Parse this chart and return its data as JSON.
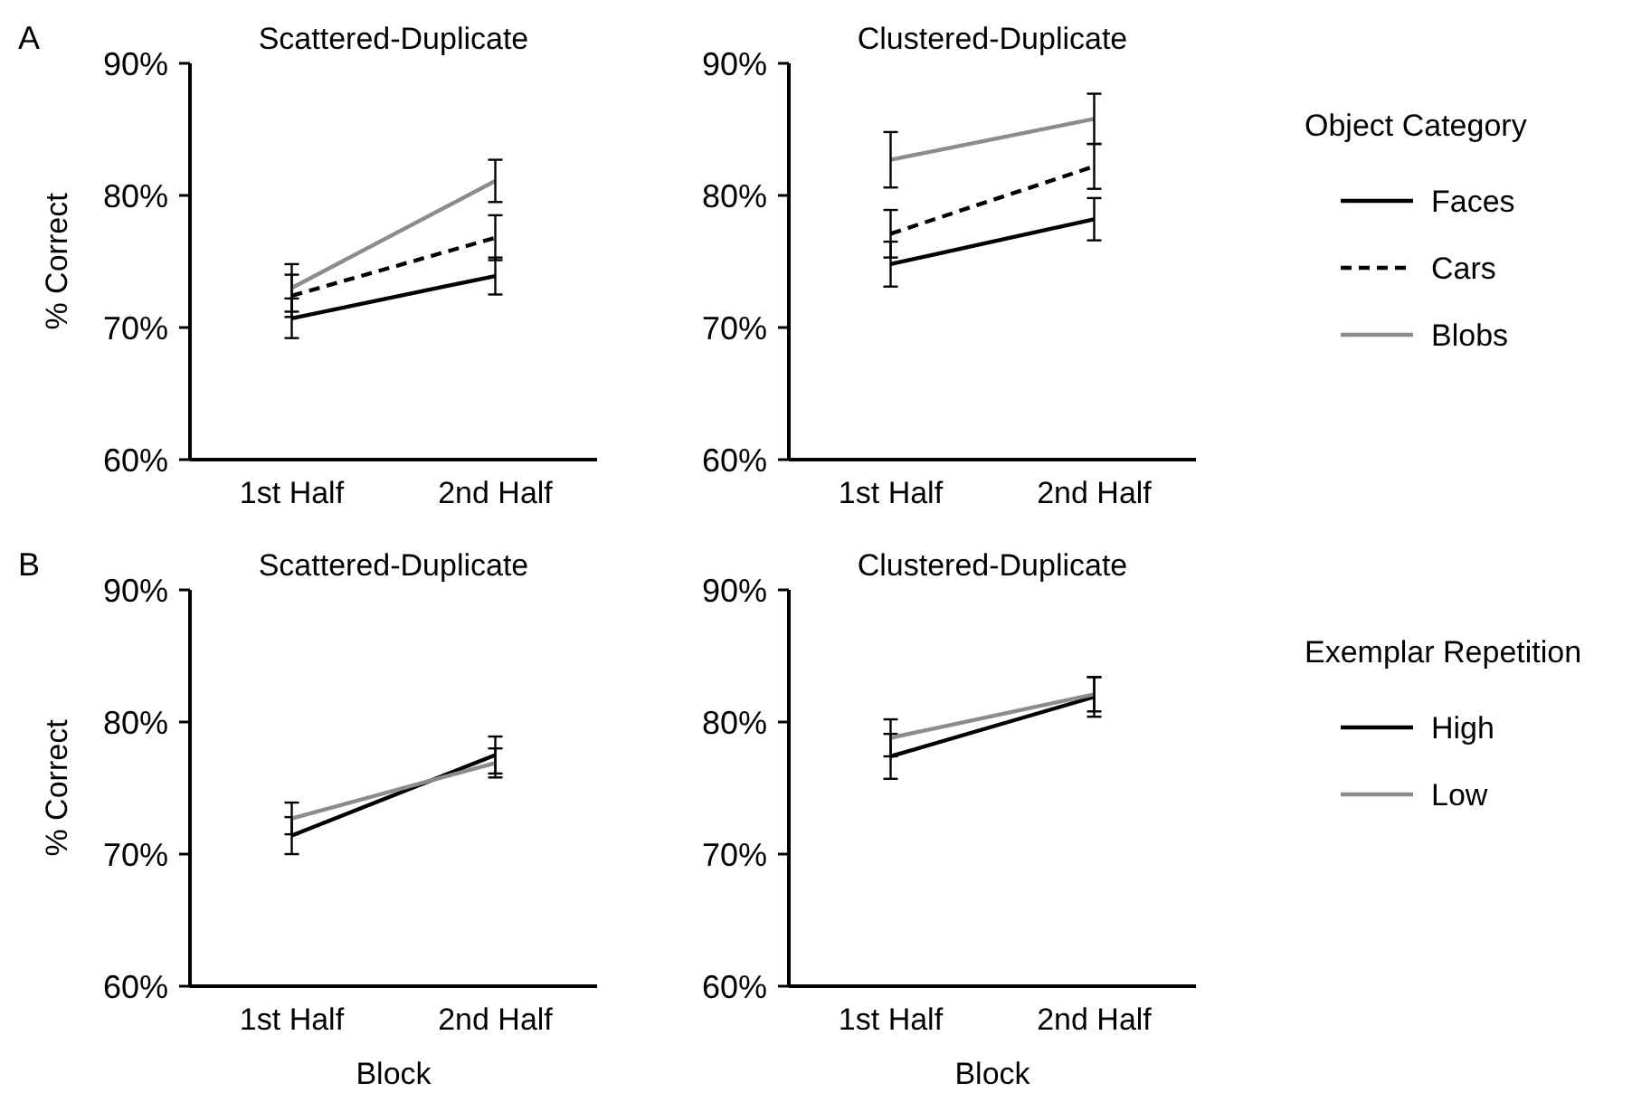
{
  "chart_data": [
    {
      "type": "line",
      "title": "Scattered-Duplicate",
      "ylabel": "% Correct",
      "categories": [
        "1st Half",
        "2nd Half"
      ],
      "ylim": [
        60,
        90
      ],
      "yticks": [
        {
          "value": 60,
          "label": "60%"
        },
        {
          "value": 70,
          "label": "70%"
        },
        {
          "value": 80,
          "label": "80%"
        },
        {
          "value": 90,
          "label": "90%"
        }
      ],
      "annotations": [
        "A"
      ],
      "legend": false,
      "marker": "none",
      "series": [
        {
          "color": "#000000",
          "values": [
            70.7,
            73.9
          ],
          "errors": [
            1.5,
            1.4
          ]
        },
        {
          "color": "#000000",
          "line_style": "dashed",
          "values": [
            72.4,
            76.8
          ],
          "errors": [
            1.6,
            1.7
          ]
        },
        {
          "color": "#8c8c8c",
          "values": [
            73.0,
            81.1
          ],
          "errors": [
            1.8,
            1.6
          ]
        }
      ]
    },
    {
      "type": "line",
      "title": "Clustered-Duplicate",
      "categories": [
        "1st Half",
        "2nd Half"
      ],
      "ylim": [
        60,
        90
      ],
      "yticks": [
        {
          "value": 60,
          "label": "60%"
        },
        {
          "value": 70,
          "label": "70%"
        },
        {
          "value": 80,
          "label": "80%"
        },
        {
          "value": 90,
          "label": "90%"
        }
      ],
      "legend": "right",
      "legend_title": "Object Category",
      "marker": "none",
      "series": [
        {
          "name": "Faces",
          "color": "#000000",
          "values": [
            74.8,
            78.2
          ],
          "errors": [
            1.7,
            1.6
          ]
        },
        {
          "name": "Cars",
          "color": "#000000",
          "line_style": "dashed",
          "values": [
            77.1,
            82.2
          ],
          "errors": [
            1.8,
            1.7
          ]
        },
        {
          "name": "Blobs",
          "color": "#8c8c8c",
          "values": [
            82.7,
            85.8
          ],
          "errors": [
            2.1,
            1.9
          ]
        }
      ]
    },
    {
      "type": "line",
      "title": "Scattered-Duplicate",
      "ylabel": "% Correct",
      "xlabel": "Block",
      "categories": [
        "1st Half",
        "2nd Half"
      ],
      "ylim": [
        60,
        90
      ],
      "yticks": [
        {
          "value": 60,
          "label": "60%"
        },
        {
          "value": 70,
          "label": "70%"
        },
        {
          "value": 80,
          "label": "80%"
        },
        {
          "value": 90,
          "label": "90%"
        }
      ],
      "annotations": [
        "B"
      ],
      "legend": false,
      "marker": "none",
      "series": [
        {
          "color": "#000000",
          "values": [
            71.4,
            77.5
          ],
          "errors": [
            1.4,
            1.4
          ]
        },
        {
          "color": "#8c8c8c",
          "values": [
            72.7,
            76.9
          ],
          "errors": [
            1.2,
            1.1
          ]
        }
      ]
    },
    {
      "type": "line",
      "title": "Clustered-Duplicate",
      "xlabel": "Block",
      "categories": [
        "1st Half",
        "2nd Half"
      ],
      "ylim": [
        60,
        90
      ],
      "yticks": [
        {
          "value": 60,
          "label": "60%"
        },
        {
          "value": 70,
          "label": "70%"
        },
        {
          "value": 80,
          "label": "80%"
        },
        {
          "value": 90,
          "label": "90%"
        }
      ],
      "legend": "right",
      "legend_title": "Exemplar Repetition",
      "marker": "none",
      "series": [
        {
          "name": "High",
          "color": "#000000",
          "values": [
            77.4,
            81.9
          ],
          "errors": [
            1.7,
            1.5
          ]
        },
        {
          "name": "Low",
          "color": "#8c8c8c",
          "values": [
            78.8,
            82.1
          ],
          "errors": [
            1.4,
            1.3
          ]
        }
      ]
    }
  ]
}
